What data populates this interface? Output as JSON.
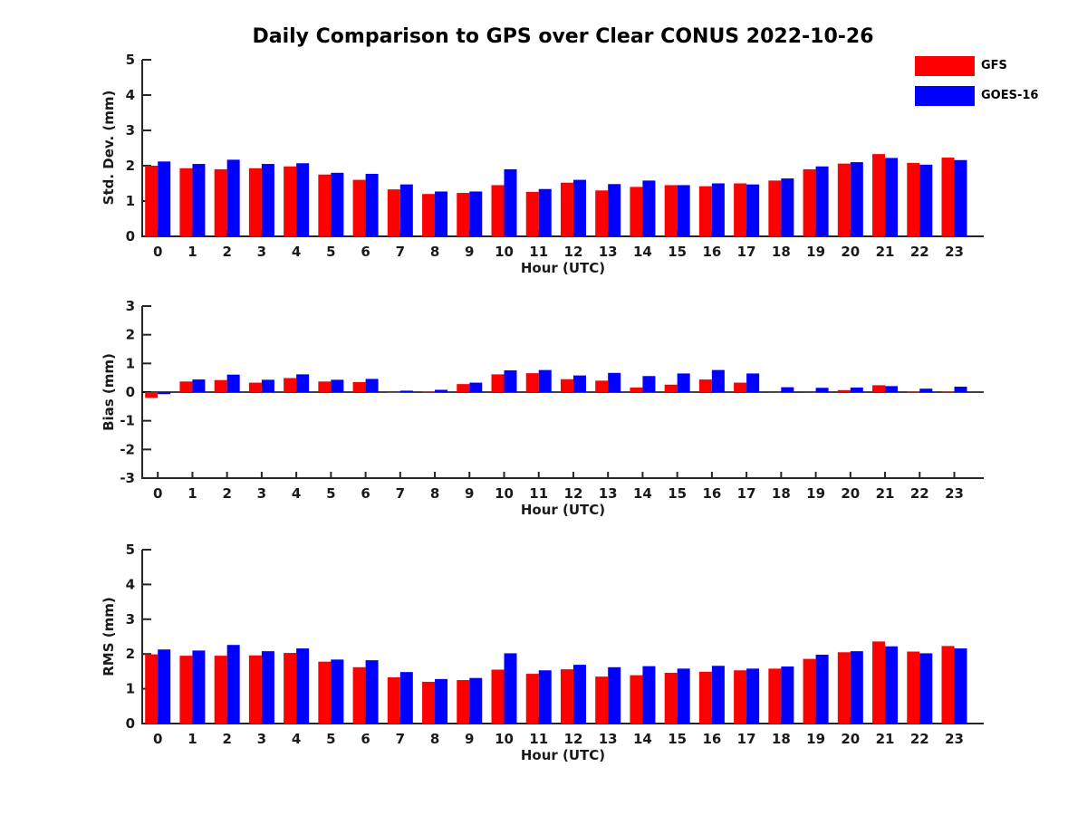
{
  "title": "Daily Comparison to GPS over Clear CONUS 2022-10-26",
  "legend": [
    {
      "label": "GFS",
      "color": "#ff0000"
    },
    {
      "label": "GOES-16",
      "color": "#0000ff"
    }
  ],
  "colors": {
    "gfs": "#ff0000",
    "goes16": "#0000ff",
    "axis": "#262626",
    "text": "#1a1a1a",
    "zero_line": "#000000"
  },
  "layout_hints": {
    "legend_position": "top-right",
    "grid": "off",
    "panels": 3
  },
  "chart_data": [
    {
      "type": "bar",
      "panel": "std-dev",
      "ylabel": "Std. Dev. (mm)",
      "xlabel": "Hour (UTC)",
      "ylim": [
        0,
        5
      ],
      "yticks": [
        0,
        1,
        2,
        3,
        4,
        5
      ],
      "xlim": [
        -0.45,
        23.85
      ],
      "categories": [
        "0",
        "1",
        "2",
        "3",
        "4",
        "5",
        "6",
        "7",
        "8",
        "9",
        "10",
        "11",
        "12",
        "13",
        "14",
        "15",
        "16",
        "17",
        "18",
        "19",
        "20",
        "21",
        "22",
        "23"
      ],
      "series": [
        {
          "name": "GFS",
          "color": "#ff0000",
          "values": [
            2.0,
            1.93,
            1.9,
            1.93,
            1.98,
            1.75,
            1.6,
            1.33,
            1.2,
            1.23,
            1.45,
            1.26,
            1.52,
            1.3,
            1.4,
            1.45,
            1.42,
            1.5,
            1.58,
            1.9,
            2.06,
            2.33,
            2.08,
            2.23
          ]
        },
        {
          "name": "GOES-16",
          "color": "#0000ff",
          "values": [
            2.12,
            2.05,
            2.17,
            2.05,
            2.07,
            1.8,
            1.77,
            1.47,
            1.27,
            1.27,
            1.9,
            1.34,
            1.6,
            1.48,
            1.58,
            1.45,
            1.5,
            1.47,
            1.64,
            1.98,
            2.1,
            2.22,
            2.03,
            2.16
          ]
        }
      ]
    },
    {
      "type": "bar",
      "panel": "bias",
      "ylabel": "Bias (mm)",
      "xlabel": "Hour (UTC)",
      "ylim": [
        -3,
        3
      ],
      "yticks": [
        -3,
        -2,
        -1,
        0,
        1,
        2,
        3
      ],
      "xlim": [
        -0.45,
        23.85
      ],
      "zero_line": true,
      "categories": [
        "0",
        "1",
        "2",
        "3",
        "4",
        "5",
        "6",
        "7",
        "8",
        "9",
        "10",
        "11",
        "12",
        "13",
        "14",
        "15",
        "16",
        "17",
        "18",
        "19",
        "20",
        "21",
        "22",
        "23"
      ],
      "series": [
        {
          "name": "GFS",
          "color": "#ff0000",
          "values": [
            -0.2,
            0.37,
            0.42,
            0.33,
            0.49,
            0.37,
            0.35,
            -0.02,
            0.01,
            0.28,
            0.62,
            0.66,
            0.45,
            0.4,
            0.16,
            0.26,
            0.44,
            0.33,
            -0.03,
            -0.03,
            0.07,
            0.24,
            0.01,
            0.01
          ]
        },
        {
          "name": "GOES-16",
          "color": "#0000ff",
          "values": [
            -0.07,
            0.44,
            0.61,
            0.43,
            0.62,
            0.43,
            0.46,
            0.05,
            0.08,
            0.33,
            0.76,
            0.77,
            0.58,
            0.67,
            0.56,
            0.65,
            0.77,
            0.65,
            0.17,
            0.15,
            0.16,
            0.21,
            0.12,
            0.19
          ]
        }
      ]
    },
    {
      "type": "bar",
      "panel": "rms",
      "ylabel": "RMS (mm)",
      "xlabel": "Hour (UTC)",
      "ylim": [
        0,
        5
      ],
      "yticks": [
        0,
        1,
        2,
        3,
        4,
        5
      ],
      "xlim": [
        -0.45,
        23.85
      ],
      "categories": [
        "0",
        "1",
        "2",
        "3",
        "4",
        "5",
        "6",
        "7",
        "8",
        "9",
        "10",
        "11",
        "12",
        "13",
        "14",
        "15",
        "16",
        "17",
        "18",
        "19",
        "20",
        "21",
        "22",
        "23"
      ],
      "series": [
        {
          "name": "GFS",
          "color": "#ff0000",
          "values": [
            1.99,
            1.95,
            1.95,
            1.96,
            2.03,
            1.78,
            1.62,
            1.33,
            1.2,
            1.25,
            1.55,
            1.43,
            1.56,
            1.35,
            1.39,
            1.46,
            1.49,
            1.53,
            1.58,
            1.86,
            2.05,
            2.36,
            2.07,
            2.23
          ]
        },
        {
          "name": "GOES-16",
          "color": "#0000ff",
          "values": [
            2.13,
            2.1,
            2.26,
            2.08,
            2.16,
            1.84,
            1.82,
            1.48,
            1.28,
            1.31,
            2.02,
            1.53,
            1.69,
            1.62,
            1.65,
            1.58,
            1.66,
            1.58,
            1.64,
            1.98,
            2.08,
            2.22,
            2.02,
            2.16
          ]
        }
      ]
    }
  ]
}
